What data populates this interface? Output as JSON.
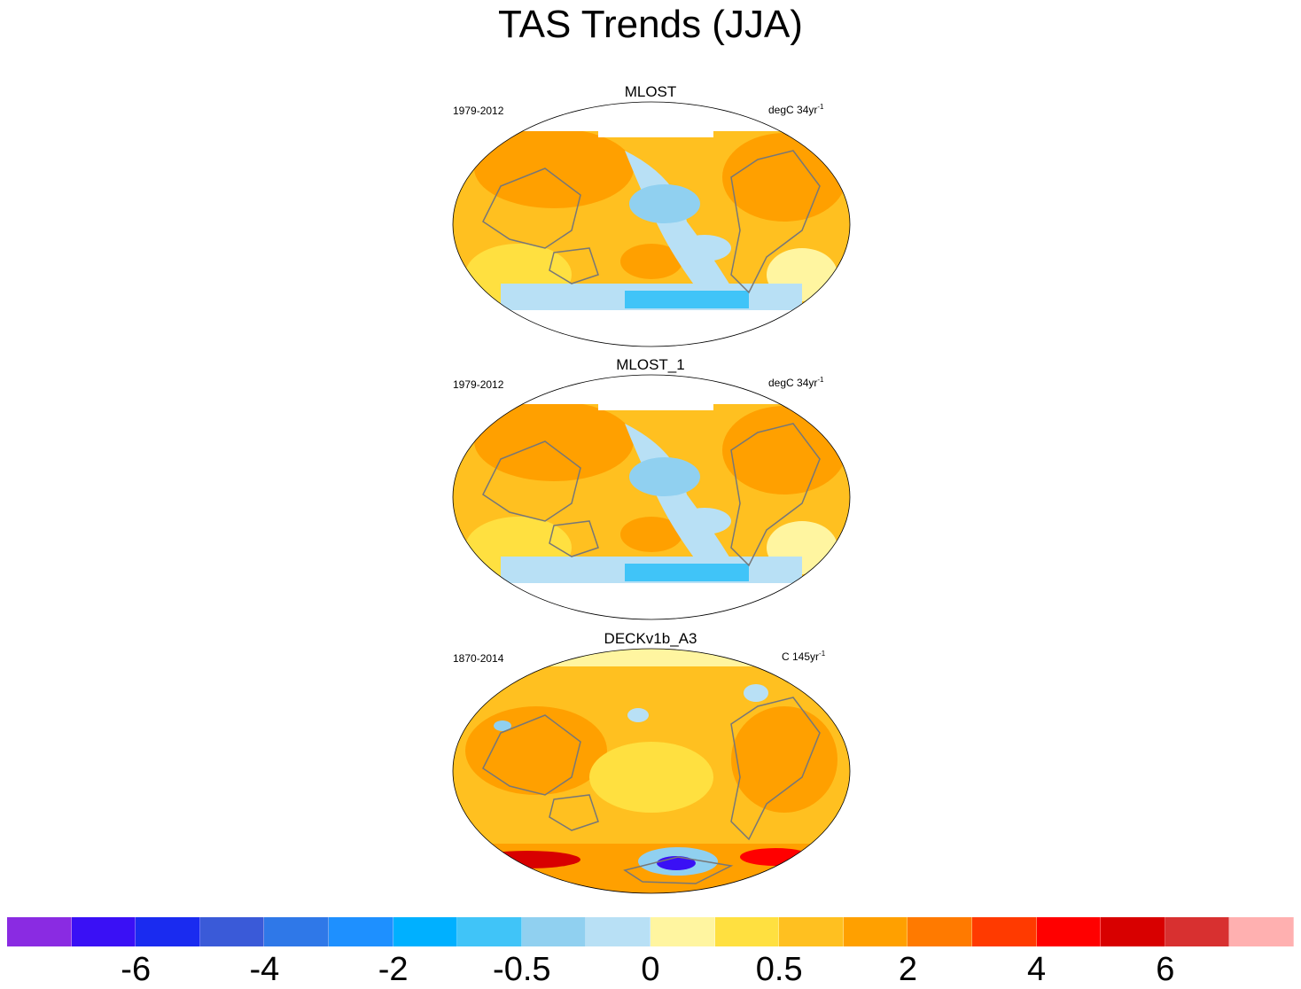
{
  "title": "TAS Trends (JJA)",
  "panels": [
    {
      "name": "MLOST",
      "period": "1979-2012",
      "units_prefix": "degC 34yr",
      "units_exp": "-1"
    },
    {
      "name": "MLOST_1",
      "period": "1979-2012",
      "units_prefix": "degC 34yr",
      "units_exp": "-1"
    },
    {
      "name": "DECKv1b_A3",
      "period": "1870-2014",
      "units_prefix": "C 145yr",
      "units_exp": "-1"
    }
  ],
  "colorbar": {
    "colors": [
      "#8a2be2",
      "#3a10f5",
      "#1a2bf0",
      "#3a5ad8",
      "#2f78e8",
      "#1e90ff",
      "#00b0ff",
      "#40c4f8",
      "#90d0f0",
      "#b8e0f5",
      "#fff5a0",
      "#ffe040",
      "#ffc020",
      "#ffa000",
      "#ff7a00",
      "#ff3a00",
      "#ff0000",
      "#d80000",
      "#d83030",
      "#ffb0b0"
    ],
    "labels": [
      "-6",
      "-4",
      "-2",
      "-0.5",
      "0",
      "0.5",
      "2",
      "4",
      "6"
    ]
  }
}
